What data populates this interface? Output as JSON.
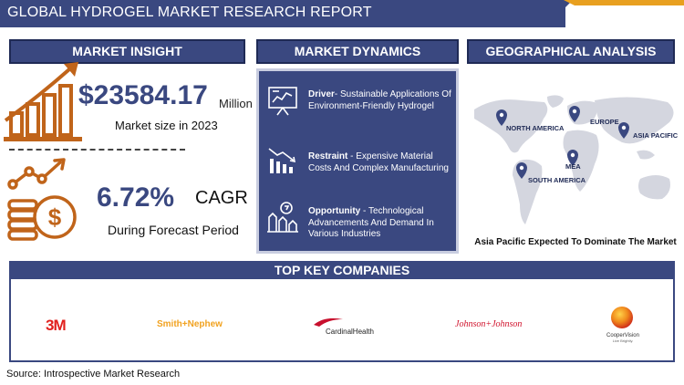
{
  "header": {
    "title": "GLOBAL HYDROGEL MARKET RESEARCH REPORT"
  },
  "sections": {
    "insight": "MARKET INSIGHT",
    "dynamics": "MARKET DYNAMICS",
    "geography": "GEOGRAPHICAL ANALYSIS",
    "companies": "TOP KEY COMPANIES"
  },
  "insight": {
    "market_size_value": "$23584.17",
    "market_size_unit": "Million",
    "market_size_caption": "Market size in 2023",
    "cagr_value": "6.72%",
    "cagr_label": "CAGR",
    "cagr_caption": "During Forecast Period"
  },
  "dynamics": [
    {
      "key": "Driver",
      "sep": "- ",
      "text": "Sustainable Applications Of Environment-Friendly Hydrogel",
      "icon": "chart-board-icon"
    },
    {
      "key": "Restraint",
      "sep": " - ",
      "text": "Expensive Material Costs And Complex Manufacturing",
      "icon": "declining-bars-icon"
    },
    {
      "key": "Opportunity",
      "sep": " - ",
      "text": "Technological Advancements And Demand In Various Industries",
      "icon": "growth-arrows-icon"
    }
  ],
  "geography": {
    "regions": [
      "NORTH AMERICA",
      "EUROPE",
      "ASIA PACIFIC",
      "MEA",
      "SOUTH AMERICA"
    ],
    "caption": "Asia Pacific Expected To Dominate The Market"
  },
  "companies": {
    "logos": {
      "3m": "3M",
      "smith_nephew": "Smith+Nephew",
      "cardinal_health": "CardinalHealth",
      "jnj": "Johnson+Johnson",
      "coopervision": "CooperVision",
      "coopervision_tagline": "Live Brightly."
    }
  },
  "footer": {
    "source": "Source: Introspective Market Research"
  },
  "colors": {
    "primary": "#3a4880",
    "accent": "#e8a020",
    "icon_orange": "#c0641a",
    "map_gray": "#d4d6df"
  }
}
